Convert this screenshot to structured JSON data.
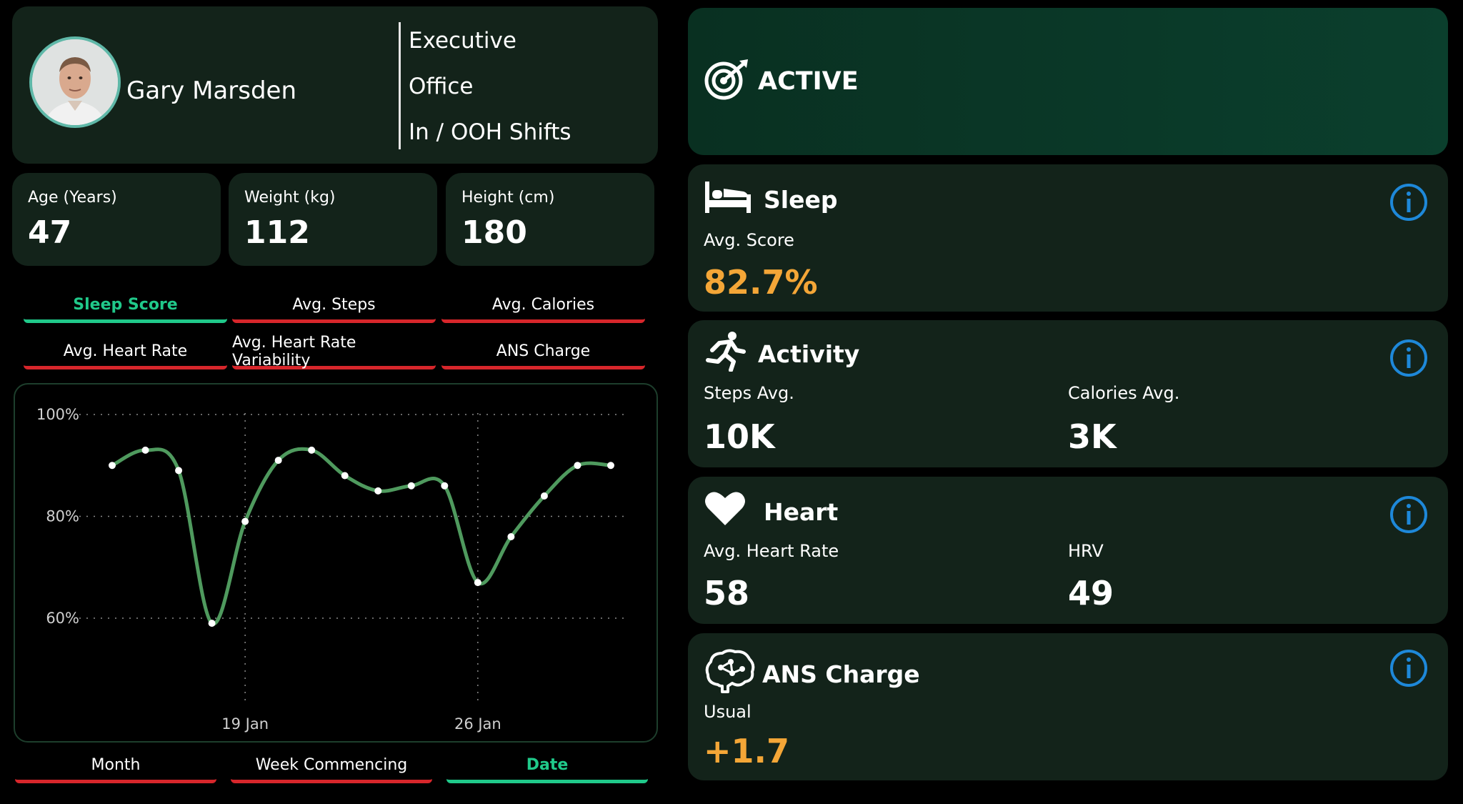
{
  "profile": {
    "name": "Gary Marsden",
    "roles": [
      "Executive",
      "Office",
      "In / OOH Shifts"
    ]
  },
  "stats": [
    {
      "label": "Age (Years)",
      "value": "47"
    },
    {
      "label": "Weight (kg)",
      "value": "112"
    },
    {
      "label": "Height (cm)",
      "value": "180"
    }
  ],
  "metric_tabs": [
    "Sleep Score",
    "Avg. Steps",
    "Avg. Calories",
    "Avg. Heart Rate",
    "Avg. Heart Rate Variability",
    "ANS Charge"
  ],
  "active_metric_tab": "Sleep Score",
  "period_tabs": [
    "Month",
    "Week Commencing",
    "Date"
  ],
  "active_period_tab": "Date",
  "status": {
    "label": "ACTIVE"
  },
  "sleep": {
    "title": "Sleep",
    "score_label": "Avg. Score",
    "score_value": "82.7%"
  },
  "activity": {
    "title": "Activity",
    "steps_label": "Steps Avg.",
    "steps_value": "10K",
    "calories_label": "Calories Avg.",
    "calories_value": "3K"
  },
  "heart": {
    "title": "Heart",
    "hr_label": "Avg. Heart Rate",
    "hr_value": "58",
    "hrv_label": "HRV",
    "hrv_value": "49"
  },
  "ans": {
    "title": "ANS Charge",
    "status_label": "Usual",
    "value": "+1.7"
  },
  "colors": {
    "accent_green": "#20c98a",
    "line_green": "#4f9a5e",
    "tab_red": "#d7262b",
    "orange": "#f4a637",
    "info_blue": "#1e88d9",
    "card_bg": "#13231a"
  },
  "chart_data": {
    "type": "line",
    "x": [
      "2025-01-15",
      "2025-01-16",
      "2025-01-17",
      "2025-01-18",
      "2025-01-19",
      "2025-01-20",
      "2025-01-21",
      "2025-01-22",
      "2025-01-23",
      "2025-01-24",
      "2025-01-25",
      "2025-01-26",
      "2025-01-27",
      "2025-01-28",
      "2025-01-29",
      "2025-01-30"
    ],
    "values": [
      90,
      93,
      89,
      59,
      79,
      91,
      93,
      88,
      85,
      86,
      86,
      67,
      76,
      84,
      90,
      90
    ],
    "y_ticks": [
      "60%",
      "80%",
      "100%"
    ],
    "ylim": [
      55,
      100
    ],
    "x_ticks": [
      {
        "date": "2025-01-19",
        "label": "19 Jan"
      },
      {
        "date": "2025-01-26",
        "label": "26 Jan"
      }
    ],
    "grid": true
  }
}
